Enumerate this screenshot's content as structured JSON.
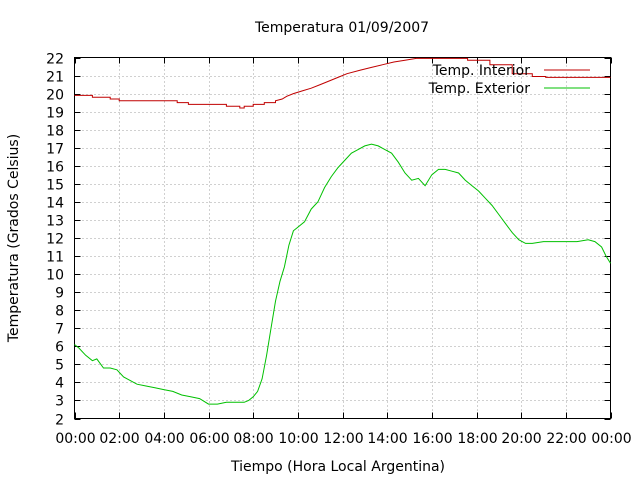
{
  "chart_data": {
    "type": "line",
    "title": "Temperatura 01/09/2007",
    "xlabel": "Tiempo (Hora Local Argentina)",
    "ylabel": "Temperatura (Grados Celsius)",
    "x_unit": "hours",
    "xlim": [
      0,
      24
    ],
    "ylim": [
      2,
      22
    ],
    "x_ticks": [
      0,
      2,
      4,
      6,
      8,
      10,
      12,
      14,
      16,
      18,
      20,
      22,
      24
    ],
    "x_tick_labels": [
      "00:00",
      "02:00",
      "04:00",
      "06:00",
      "08:00",
      "10:00",
      "12:00",
      "14:00",
      "16:00",
      "18:00",
      "20:00",
      "22:00",
      "00:00"
    ],
    "y_ticks": [
      2,
      3,
      4,
      5,
      6,
      7,
      8,
      9,
      10,
      11,
      12,
      13,
      14,
      15,
      16,
      17,
      18,
      19,
      20,
      21,
      22
    ],
    "y_tick_labels": [
      "2",
      "3",
      "4",
      "5",
      "6",
      "7",
      "8",
      "9",
      "10",
      "11",
      "12",
      "13",
      "14",
      "15",
      "16",
      "17",
      "18",
      "19",
      "20",
      "21",
      "22"
    ],
    "grid": true,
    "legend_position": "top-right",
    "series": [
      {
        "name": "Temp. Interior",
        "color": "#c00000",
        "x": [
          0,
          0.8,
          0.8,
          1.6,
          1.6,
          2.0,
          2.0,
          4.6,
          4.6,
          5.1,
          5.1,
          6.8,
          6.8,
          7.4,
          7.4,
          7.6,
          7.6,
          8.0,
          8.0,
          8.5,
          8.5,
          9.0,
          9.0,
          9.3,
          9.5,
          9.8,
          10.2,
          10.6,
          11.0,
          11.4,
          11.8,
          12.2,
          12.8,
          13.3,
          13.8,
          14.3,
          14.8,
          15.3,
          17.6,
          17.6,
          18.6,
          18.6,
          19.6,
          19.6,
          20.5,
          20.5,
          21.1,
          21.1,
          24.0
        ],
        "y": [
          19.9,
          19.9,
          19.8,
          19.8,
          19.7,
          19.7,
          19.6,
          19.6,
          19.5,
          19.5,
          19.4,
          19.4,
          19.3,
          19.3,
          19.2,
          19.2,
          19.3,
          19.3,
          19.4,
          19.4,
          19.5,
          19.5,
          19.6,
          19.7,
          19.85,
          20.0,
          20.15,
          20.3,
          20.5,
          20.7,
          20.9,
          21.1,
          21.3,
          21.45,
          21.6,
          21.75,
          21.85,
          21.95,
          21.95,
          21.85,
          21.85,
          21.6,
          21.6,
          21.1,
          21.1,
          20.95,
          20.95,
          20.9,
          20.9
        ]
      },
      {
        "name": "Temp. Exterior",
        "color": "#00c000",
        "x": [
          0,
          0.2,
          0.5,
          0.8,
          1.0,
          1.3,
          1.6,
          1.9,
          2.2,
          2.5,
          2.8,
          3.2,
          3.6,
          4.0,
          4.4,
          4.8,
          5.2,
          5.6,
          6.0,
          6.4,
          6.8,
          7.2,
          7.6,
          7.8,
          8.0,
          8.2,
          8.4,
          8.6,
          8.8,
          9.0,
          9.2,
          9.4,
          9.6,
          9.8,
          10.0,
          10.3,
          10.6,
          10.9,
          11.2,
          11.5,
          11.8,
          12.1,
          12.4,
          12.7,
          13.0,
          13.3,
          13.6,
          13.9,
          14.2,
          14.5,
          14.8,
          15.1,
          15.4,
          15.7,
          16.0,
          16.3,
          16.6,
          16.9,
          17.2,
          17.5,
          17.8,
          18.1,
          18.4,
          18.7,
          19.0,
          19.3,
          19.6,
          19.9,
          20.2,
          20.5,
          21.0,
          21.5,
          22.0,
          22.5,
          23.0,
          23.3,
          23.6,
          23.8,
          24.0
        ],
        "y": [
          6.1,
          5.9,
          5.5,
          5.2,
          5.3,
          4.8,
          4.8,
          4.7,
          4.3,
          4.1,
          3.9,
          3.8,
          3.7,
          3.6,
          3.5,
          3.3,
          3.2,
          3.1,
          2.8,
          2.8,
          2.9,
          2.9,
          2.9,
          3.0,
          3.2,
          3.5,
          4.2,
          5.5,
          7.0,
          8.5,
          9.6,
          10.4,
          11.6,
          12.4,
          12.6,
          12.9,
          13.6,
          14.0,
          14.8,
          15.4,
          15.9,
          16.3,
          16.7,
          16.9,
          17.1,
          17.2,
          17.1,
          16.9,
          16.7,
          16.2,
          15.6,
          15.2,
          15.3,
          14.9,
          15.5,
          15.8,
          15.8,
          15.7,
          15.6,
          15.2,
          14.9,
          14.6,
          14.2,
          13.8,
          13.3,
          12.8,
          12.3,
          11.9,
          11.7,
          11.7,
          11.8,
          11.8,
          11.8,
          11.8,
          11.9,
          11.8,
          11.5,
          11.0,
          10.6
        ]
      }
    ]
  }
}
